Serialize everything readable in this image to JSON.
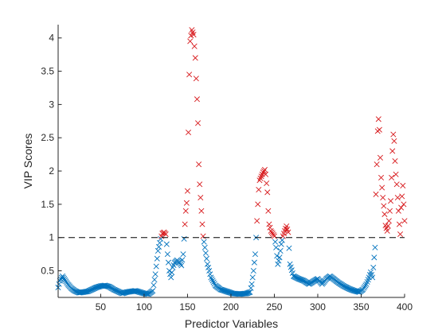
{
  "chart_data": {
    "type": "scatter",
    "title": "",
    "xlabel": "Predictor Variables",
    "ylabel": "VIP Scores",
    "xlim": [
      1,
      400
    ],
    "ylim": [
      0.1,
      4.2
    ],
    "xticks": [
      50,
      100,
      150,
      200,
      250,
      300,
      350,
      400
    ],
    "yticks": [
      0.5,
      1,
      1.5,
      2,
      2.5,
      3,
      3.5,
      4
    ],
    "grid": false,
    "legend": "none",
    "marker": "x",
    "threshold": {
      "y": 1,
      "style": "dashed",
      "color": "#000000"
    },
    "colors": {
      "below": "#0072BD",
      "above": "#D7191C"
    },
    "anchors": [
      [
        1,
        0.25
      ],
      [
        3,
        0.35
      ],
      [
        6,
        0.42
      ],
      [
        9,
        0.36
      ],
      [
        12,
        0.3
      ],
      [
        16,
        0.24
      ],
      [
        20,
        0.2
      ],
      [
        25,
        0.17
      ],
      [
        30,
        0.18
      ],
      [
        35,
        0.19
      ],
      [
        40,
        0.22
      ],
      [
        45,
        0.25
      ],
      [
        50,
        0.27
      ],
      [
        55,
        0.28
      ],
      [
        60,
        0.26
      ],
      [
        65,
        0.22
      ],
      [
        70,
        0.19
      ],
      [
        75,
        0.16
      ],
      [
        80,
        0.18
      ],
      [
        85,
        0.19
      ],
      [
        90,
        0.2
      ],
      [
        95,
        0.18
      ],
      [
        100,
        0.16
      ],
      [
        105,
        0.15
      ],
      [
        110,
        0.2
      ],
      [
        113,
        0.45
      ],
      [
        116,
        0.8
      ],
      [
        119,
        0.98
      ],
      [
        121,
        1.06
      ],
      [
        123,
        1.08
      ],
      [
        125,
        1.05
      ],
      [
        127,
        0.75
      ],
      [
        129,
        0.5
      ],
      [
        131,
        0.4
      ],
      [
        133,
        0.55
      ],
      [
        135,
        0.62
      ],
      [
        138,
        0.66
      ],
      [
        141,
        0.62
      ],
      [
        143,
        0.58
      ],
      [
        145,
        0.75
      ],
      [
        146,
        0.98
      ],
      [
        147,
        1.2
      ],
      [
        148,
        1.4
      ],
      [
        149,
        1.52
      ],
      [
        150,
        1.7
      ],
      [
        151,
        2.58
      ],
      [
        152,
        3.45
      ],
      [
        153,
        3.95
      ],
      [
        155,
        4.12
      ],
      [
        157,
        4.05
      ],
      [
        159,
        3.7
      ],
      [
        161,
        3.08
      ],
      [
        162,
        2.72
      ],
      [
        163,
        2.1
      ],
      [
        164,
        1.8
      ],
      [
        165,
        1.6
      ],
      [
        166,
        1.4
      ],
      [
        167,
        1.2
      ],
      [
        168,
        1.02
      ],
      [
        170,
        0.85
      ],
      [
        173,
        0.6
      ],
      [
        177,
        0.4
      ],
      [
        182,
        0.28
      ],
      [
        188,
        0.22
      ],
      [
        195,
        0.19
      ],
      [
        202,
        0.16
      ],
      [
        210,
        0.15
      ],
      [
        218,
        0.16
      ],
      [
        222,
        0.18
      ],
      [
        224,
        0.3
      ],
      [
        226,
        0.5
      ],
      [
        228,
        0.75
      ],
      [
        229,
        1.0
      ],
      [
        230,
        1.25
      ],
      [
        231,
        1.5
      ],
      [
        232,
        1.72
      ],
      [
        233,
        1.86
      ],
      [
        235,
        1.92
      ],
      [
        237,
        1.98
      ],
      [
        239,
        2.02
      ],
      [
        240,
        1.95
      ],
      [
        242,
        1.68
      ],
      [
        243,
        1.4
      ],
      [
        244,
        1.2
      ],
      [
        246,
        1.1
      ],
      [
        248,
        1.06
      ],
      [
        250,
        1.02
      ],
      [
        252,
        0.85
      ],
      [
        254,
        0.6
      ],
      [
        256,
        0.7
      ],
      [
        258,
        0.9
      ],
      [
        260,
        1.02
      ],
      [
        262,
        1.1
      ],
      [
        264,
        1.17
      ],
      [
        266,
        1.08
      ],
      [
        268,
        0.6
      ],
      [
        272,
        0.42
      ],
      [
        278,
        0.38
      ],
      [
        284,
        0.35
      ],
      [
        290,
        0.3
      ],
      [
        296,
        0.35
      ],
      [
        300,
        0.38
      ],
      [
        305,
        0.3
      ],
      [
        310,
        0.38
      ],
      [
        314,
        0.42
      ],
      [
        318,
        0.38
      ],
      [
        324,
        0.32
      ],
      [
        330,
        0.27
      ],
      [
        336,
        0.23
      ],
      [
        342,
        0.2
      ],
      [
        348,
        0.18
      ],
      [
        352,
        0.22
      ],
      [
        356,
        0.3
      ],
      [
        359,
        0.4
      ],
      [
        361,
        0.48
      ],
      [
        363,
        0.4
      ],
      [
        365,
        0.7
      ],
      [
        366,
        0.85
      ],
      [
        367,
        1.65
      ],
      [
        368,
        2.1
      ],
      [
        369,
        2.6
      ],
      [
        370,
        2.78
      ],
      [
        371,
        2.62
      ],
      [
        372,
        2.2
      ],
      [
        373,
        1.9
      ],
      [
        375,
        1.6
      ],
      [
        377,
        1.35
      ],
      [
        378,
        1.18
      ],
      [
        380,
        1.1
      ],
      [
        382,
        1.25
      ],
      [
        384,
        1.55
      ],
      [
        385,
        1.9
      ],
      [
        386,
        2.3
      ],
      [
        387,
        2.55
      ],
      [
        388,
        2.45
      ],
      [
        389,
        2.15
      ],
      [
        390,
        1.95
      ],
      [
        391,
        1.8
      ],
      [
        392,
        1.6
      ],
      [
        393,
        1.4
      ],
      [
        394,
        1.2
      ],
      [
        395,
        1.05
      ],
      [
        396,
        1.45
      ],
      [
        397,
        1.62
      ],
      [
        398,
        1.78
      ],
      [
        399,
        1.5
      ],
      [
        400,
        1.25
      ]
    ]
  }
}
